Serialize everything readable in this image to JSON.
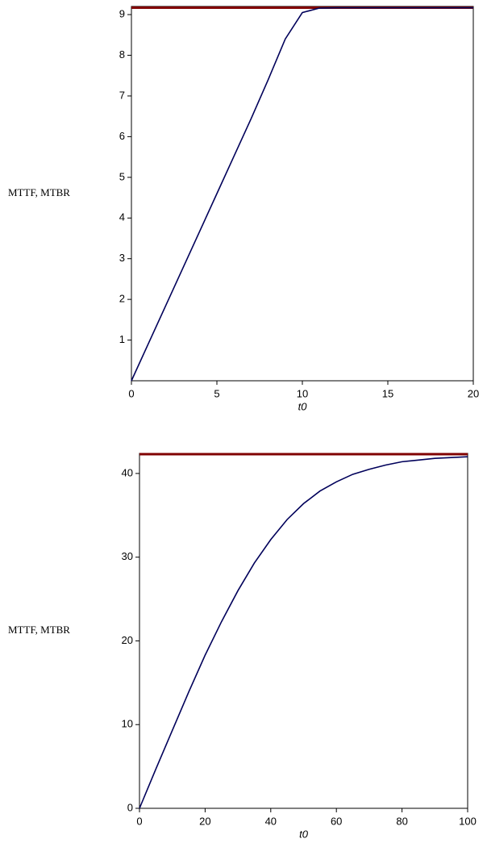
{
  "chart_data": [
    {
      "type": "line",
      "y_label": "MTTF, MTBR",
      "x_label": "t0",
      "x": [
        0,
        1,
        2,
        3,
        4,
        5,
        6,
        7,
        8,
        9,
        10,
        11,
        12,
        13,
        14,
        15,
        16,
        17,
        18,
        19,
        20
      ],
      "xlim": [
        0,
        20
      ],
      "xticks": [
        0,
        5,
        10,
        15,
        20
      ],
      "ylim": [
        0,
        9.2
      ],
      "yticks": [
        1,
        2,
        3,
        4,
        5,
        6,
        7,
        8,
        9
      ],
      "series": [
        {
          "color": "#800000",
          "values": [
            9.17,
            9.17,
            9.17,
            9.17,
            9.17,
            9.17,
            9.17,
            9.17,
            9.17,
            9.17,
            9.17,
            9.17,
            9.17,
            9.17,
            9.17,
            9.17,
            9.17,
            9.17,
            9.17,
            9.17,
            9.17
          ]
        },
        {
          "color": "#00005a",
          "values": [
            0,
            0.92,
            1.84,
            2.76,
            3.68,
            4.6,
            5.52,
            6.44,
            7.4,
            8.4,
            9.05,
            9.16,
            9.17,
            9.17,
            9.17,
            9.17,
            9.17,
            9.17,
            9.17,
            9.17,
            9.17
          ]
        }
      ]
    },
    {
      "type": "line",
      "y_label": "MTTF, MTBR",
      "x_label": "t0",
      "x": [
        0,
        5,
        10,
        15,
        20,
        25,
        30,
        35,
        40,
        45,
        50,
        55,
        60,
        65,
        70,
        75,
        80,
        85,
        90,
        95,
        100
      ],
      "xlim": [
        0,
        100
      ],
      "xticks": [
        0,
        20,
        40,
        60,
        80,
        100
      ],
      "ylim": [
        0,
        42.4
      ],
      "yticks": [
        0,
        10,
        20,
        30,
        40
      ],
      "series": [
        {
          "color": "#800000",
          "values": [
            42.3,
            42.3,
            42.3,
            42.3,
            42.3,
            42.3,
            42.3,
            42.3,
            42.3,
            42.3,
            42.3,
            42.3,
            42.3,
            42.3,
            42.3,
            42.3,
            42.3,
            42.3,
            42.3,
            42.3,
            42.3
          ]
        },
        {
          "color": "#00005a",
          "values": [
            0,
            4.7,
            9.3,
            13.9,
            18.3,
            22.3,
            26,
            29.3,
            32.1,
            34.5,
            36.4,
            37.9,
            39,
            39.9,
            40.5,
            41,
            41.4,
            41.6,
            41.8,
            41.9,
            42
          ]
        }
      ]
    }
  ]
}
